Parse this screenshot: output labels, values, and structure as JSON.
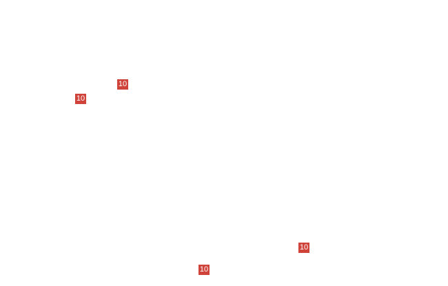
{
  "badge_color": "#d0433a",
  "badges": [
    {
      "label": "10"
    },
    {
      "label": "10"
    },
    {
      "label": "10"
    },
    {
      "label": "10"
    }
  ]
}
